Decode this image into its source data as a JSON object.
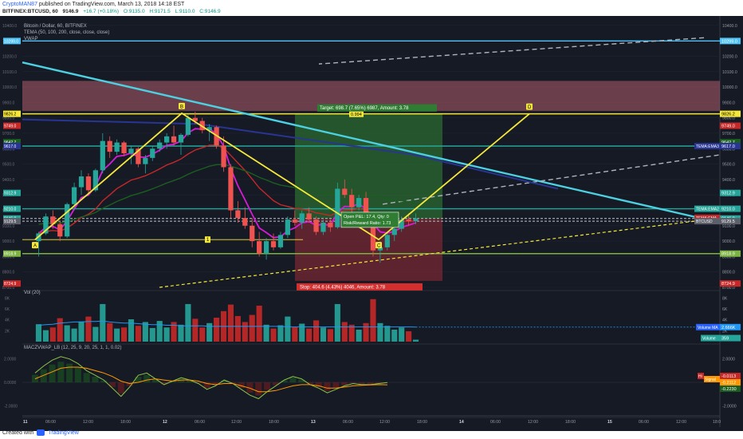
{
  "header": {
    "author": "CryptoMAN87",
    "published": "published on TradingView.com, March 13, 2018 14:18 EST",
    "ticker": "BITFINEX:BTCUSD, 60",
    "last": "9146.9",
    "change": "+16.7 (+0.18%)",
    "open": "O:9135.0",
    "high": "H:9171.5",
    "low": "L:9110.0",
    "close": "C:9146.9"
  },
  "footer": {
    "created": "Created with",
    "brand": "TradingView"
  },
  "colors": {
    "bg": "#161a25",
    "up": "#26a69a",
    "down": "#ef5350",
    "pattern": "#f5e839",
    "trend": "#4dd0e1",
    "tema": "#d81bd8",
    "target_zone": "#2e7d32",
    "stop_zone": "#8e2a35",
    "resistance_zone": "#b25c6b"
  },
  "chart_data": [
    {
      "type": "candlestick",
      "title": "Bitcoin / Dollar, 60, BITFINEX",
      "indicators": [
        "TEMA (50, 100, 200, close, close, close)",
        "VWAP"
      ],
      "ylim": [
        8700,
        10420
      ],
      "y_ticks": [
        8700,
        8800,
        8900,
        9000,
        9100,
        9200,
        9300,
        9400,
        9500,
        9600,
        9700,
        9800,
        9900,
        10000,
        10100,
        10200,
        10300,
        10400
      ],
      "x_ticks": [
        "11",
        "06:00",
        "12:00",
        "18:00",
        "12",
        "06:00",
        "12:00",
        "18:00",
        "13",
        "06:00",
        "12:00",
        "18:00",
        "14",
        "06:00",
        "12:00",
        "18:00",
        "15",
        "06:00",
        "12:00",
        "18:0"
      ],
      "candles": [
        [
          9000,
          9060,
          8900,
          9050
        ],
        [
          9050,
          9180,
          9040,
          9160
        ],
        [
          9160,
          9200,
          9080,
          9110
        ],
        [
          9110,
          9130,
          9000,
          9030
        ],
        [
          9030,
          9250,
          9020,
          9240
        ],
        [
          9240,
          9380,
          9200,
          9350
        ],
        [
          9350,
          9460,
          9300,
          9420
        ],
        [
          9420,
          9440,
          9300,
          9330
        ],
        [
          9330,
          9470,
          9320,
          9460
        ],
        [
          9460,
          9700,
          9440,
          9650
        ],
        [
          9650,
          9680,
          9540,
          9580
        ],
        [
          9580,
          9660,
          9560,
          9640
        ],
        [
          9640,
          9650,
          9550,
          9570
        ],
        [
          9570,
          9620,
          9500,
          9600
        ],
        [
          9600,
          9610,
          9480,
          9500
        ],
        [
          9500,
          9560,
          9440,
          9540
        ],
        [
          9540,
          9620,
          9520,
          9600
        ],
        [
          9600,
          9660,
          9580,
          9640
        ],
        [
          9640,
          9700,
          9600,
          9680
        ],
        [
          9680,
          9750,
          9620,
          9640
        ],
        [
          9640,
          9700,
          9560,
          9690
        ],
        [
          9690,
          9820,
          9680,
          9800
        ],
        [
          9800,
          9840,
          9760,
          9780
        ],
        [
          9780,
          9800,
          9700,
          9720
        ],
        [
          9720,
          9760,
          9650,
          9740
        ],
        [
          9740,
          9750,
          9600,
          9620
        ],
        [
          9620,
          9680,
          9450,
          9480
        ],
        [
          9480,
          9500,
          9150,
          9200
        ],
        [
          9200,
          9260,
          9120,
          9150
        ],
        [
          9150,
          9220,
          9080,
          9100
        ],
        [
          9100,
          9150,
          8960,
          9000
        ],
        [
          9000,
          9060,
          8900,
          8920
        ],
        [
          8920,
          9020,
          8880,
          9000
        ],
        [
          9000,
          9050,
          8940,
          8960
        ],
        [
          8960,
          9060,
          8950,
          9040
        ],
        [
          9040,
          9160,
          9020,
          9140
        ],
        [
          9140,
          9200,
          9100,
          9120
        ],
        [
          9120,
          9200,
          9080,
          9180
        ],
        [
          9180,
          9220,
          9120,
          9140
        ],
        [
          9140,
          9160,
          9040,
          9060
        ],
        [
          9060,
          9140,
          9040,
          9120
        ],
        [
          9120,
          9140,
          9060,
          9090
        ],
        [
          9090,
          9380,
          9080,
          9340
        ],
        [
          9340,
          9400,
          9280,
          9300
        ],
        [
          9300,
          9340,
          9180,
          9220
        ],
        [
          9220,
          9300,
          9200,
          9280
        ],
        [
          9280,
          9320,
          9100,
          9140
        ],
        [
          9140,
          9180,
          8900,
          8940
        ],
        [
          8940,
          9000,
          8860,
          8960
        ],
        [
          8960,
          9060,
          8940,
          9040
        ],
        [
          9040,
          9100,
          9000,
          9080
        ],
        [
          9080,
          9160,
          9060,
          9140
        ],
        [
          9140,
          9180,
          9100,
          9130
        ],
        [
          9130,
          9180,
          9110,
          9146.9
        ]
      ],
      "levels": [
        {
          "label": "10299.0",
          "value": 10299.0
        },
        {
          "label": "9826.2",
          "value": 9826.2
        },
        {
          "label": "9617.0",
          "value": 9617.0
        },
        {
          "label": "9210.0",
          "value": 9210.0
        },
        {
          "label": "8918.9",
          "value": 8918.9
        }
      ],
      "price_tags": [
        "10299.0",
        "9826.2",
        "9749.0",
        "9642.7",
        "9617.0",
        "9312.9",
        "9210.0",
        "9146.9",
        "9129.5",
        "8918.9",
        "8724.9"
      ],
      "right_badges": [
        "TEMA:EMA3",
        "TEMA:EMA2",
        "TEMA:EMA",
        "BTCUSD"
      ],
      "pattern_points": [
        "A",
        "B",
        "C",
        "D"
      ],
      "pattern_mid_label": "1",
      "position": {
        "target": "Target: 698.7 (7.65%) 6987, Amount: 3.78",
        "target_mid": "0.994",
        "open": "Open P&L: 17.4, Qty: 0",
        "ratio": "Risk/Reward Ratio: 1.73",
        "stop": "Stop: 404.6 (4.43%) 4046, Amount: 3.78"
      }
    },
    {
      "type": "bar",
      "title": "Vol (20)",
      "y_ticks": [
        "8K",
        "6K",
        "4K",
        "2K"
      ],
      "tags": [
        "2.666K",
        "359"
      ],
      "badges": [
        "Volume MA",
        "Volume"
      ],
      "volumes": [
        3.2,
        2.1,
        2.6,
        4.3,
        3.0,
        2.4,
        3.7,
        4.6,
        2.7,
        6.9,
        3.4,
        2.4,
        2.6,
        4.1,
        2.9,
        3.6,
        2.5,
        3.8,
        2.6,
        3.6,
        3.1,
        6.9,
        4.2,
        2.6,
        3.4,
        4.4,
        5.6,
        6.8,
        4.7,
        3.6,
        4.9,
        6.6,
        3.1,
        2.4,
        3.0,
        4.6,
        2.7,
        3.3,
        2.4,
        3.9,
        2.6,
        2.3,
        6.9,
        3.6,
        3.1,
        2.2,
        3.4,
        7.8,
        3.4,
        2.9,
        2.2,
        2.6,
        1.9,
        0.36
      ],
      "ma": [
        3.0,
        3.1,
        3.2,
        3.4,
        3.5,
        3.6,
        3.6,
        3.7,
        3.7,
        3.8,
        3.6,
        3.5,
        3.4,
        3.4,
        3.3,
        3.2,
        3.1,
        3.1,
        3.0,
        3.0,
        2.9,
        2.9,
        2.9,
        2.9,
        2.8,
        2.8,
        2.8,
        2.8,
        2.8,
        2.8,
        2.8,
        2.8,
        2.8,
        2.8,
        2.8,
        2.7,
        2.7,
        2.7,
        2.7,
        2.7,
        2.7,
        2.7,
        2.7,
        2.7,
        2.7,
        2.7,
        2.7,
        2.7,
        2.7,
        2.7,
        2.7,
        2.7,
        2.7,
        2.67
      ]
    },
    {
      "type": "line",
      "title": "MACZVWAP_LB (12, 25, 9, 20, 25, 1, 1, 0.02)",
      "y_ticks": [
        "2.0000",
        "0.0000",
        "-2.0000"
      ],
      "tags": [
        "-0.0113",
        "-0.2112",
        "-0.2230"
      ],
      "badges": [
        "Hi",
        "Signal"
      ]
    }
  ]
}
